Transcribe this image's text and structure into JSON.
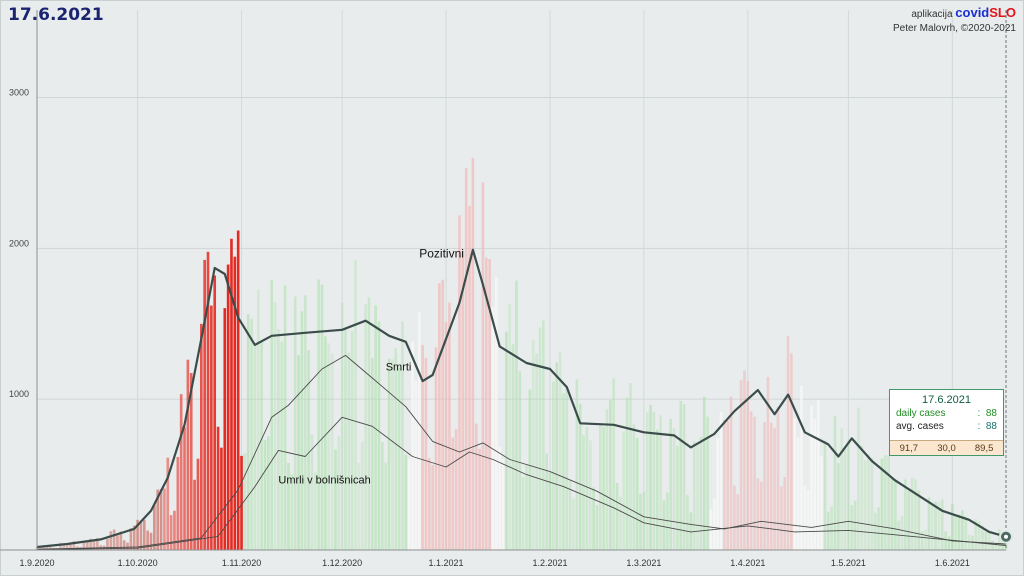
{
  "header": {
    "date": "17.6.2021"
  },
  "credit": {
    "prefix": "aplikacija",
    "brand_a": "covid",
    "brand_b": "SLO",
    "author": "Peter Malovrh, ©2020-2021"
  },
  "info_box": {
    "date": "17.6.2021",
    "daily_label": "daily cases",
    "daily_value": "88",
    "avg_label": "avg. cases",
    "avg_value": "88",
    "strip": [
      "91,7",
      "30,0",
      "89,5"
    ]
  },
  "colors": {
    "background": "#e9ecec",
    "red": "#e52a22",
    "green": "#8fd88f",
    "line_main": "#3b4d4b",
    "line_thin": "#4a4a4a"
  },
  "chart_data": {
    "type": "bar",
    "x_axis": {
      "start": "2020-09-01",
      "end": "2021-06-17",
      "tick_labels": [
        "1.9.2020",
        "1.10.2020",
        "1.11.2020",
        "1.12.2020",
        "1.1.2021",
        "1.2.2021",
        "1.3.2021",
        "1.4.2021",
        "1.5.2021",
        "1.6.2021"
      ],
      "tick_dates": [
        "2020-09-01",
        "2020-10-01",
        "2020-11-01",
        "2020-12-01",
        "2021-01-01",
        "2021-02-01",
        "2021-03-01",
        "2021-04-01",
        "2021-05-01",
        "2021-06-01"
      ]
    },
    "y_axis": {
      "min": 0,
      "max": 3580,
      "ticks": [
        1000,
        2000,
        3000
      ],
      "grid": true
    },
    "series": [
      {
        "name": "Pozitivni",
        "style": "bold-line",
        "points": [
          [
            "2020-09-01",
            20
          ],
          [
            "2020-09-10",
            40
          ],
          [
            "2020-09-20",
            70
          ],
          [
            "2020-09-30",
            140
          ],
          [
            "2020-10-05",
            260
          ],
          [
            "2020-10-10",
            480
          ],
          [
            "2020-10-15",
            830
          ],
          [
            "2020-10-20",
            1400
          ],
          [
            "2020-10-24",
            1870
          ],
          [
            "2020-10-27",
            1830
          ],
          [
            "2020-10-31",
            1540
          ],
          [
            "2020-11-05",
            1360
          ],
          [
            "2020-11-10",
            1420
          ],
          [
            "2020-11-20",
            1440
          ],
          [
            "2020-12-01",
            1460
          ],
          [
            "2020-12-08",
            1520
          ],
          [
            "2020-12-15",
            1420
          ],
          [
            "2020-12-20",
            1380
          ],
          [
            "2020-12-25",
            1120
          ],
          [
            "2020-12-28",
            1160
          ],
          [
            "2021-01-01",
            1400
          ],
          [
            "2021-01-05",
            1640
          ],
          [
            "2021-01-09",
            1990
          ],
          [
            "2021-01-12",
            1760
          ],
          [
            "2021-01-17",
            1350
          ],
          [
            "2021-01-25",
            1240
          ],
          [
            "2021-02-01",
            1200
          ],
          [
            "2021-02-06",
            1080
          ],
          [
            "2021-02-10",
            840
          ],
          [
            "2021-02-20",
            830
          ],
          [
            "2021-03-01",
            780
          ],
          [
            "2021-03-10",
            760
          ],
          [
            "2021-03-15",
            680
          ],
          [
            "2021-03-22",
            770
          ],
          [
            "2021-03-28",
            920
          ],
          [
            "2021-04-04",
            1060
          ],
          [
            "2021-04-09",
            900
          ],
          [
            "2021-04-13",
            1030
          ],
          [
            "2021-04-18",
            780
          ],
          [
            "2021-04-25",
            700
          ],
          [
            "2021-04-28",
            620
          ],
          [
            "2021-05-02",
            740
          ],
          [
            "2021-05-08",
            590
          ],
          [
            "2021-05-15",
            460
          ],
          [
            "2021-05-22",
            360
          ],
          [
            "2021-05-29",
            260
          ],
          [
            "2021-06-06",
            200
          ],
          [
            "2021-06-12",
            120
          ],
          [
            "2021-06-17",
            88
          ]
        ]
      },
      {
        "name": "Smrti",
        "style": "thin-line",
        "points": [
          [
            "2020-09-01",
            5
          ],
          [
            "2020-10-01",
            20
          ],
          [
            "2020-10-20",
            80
          ],
          [
            "2020-10-31",
            400
          ],
          [
            "2020-11-10",
            880
          ],
          [
            "2020-11-15",
            960
          ],
          [
            "2020-11-25",
            1200
          ],
          [
            "2020-12-02",
            1290
          ],
          [
            "2020-12-10",
            1140
          ],
          [
            "2020-12-20",
            950
          ],
          [
            "2020-12-28",
            720
          ],
          [
            "2021-01-05",
            650
          ],
          [
            "2021-01-12",
            710
          ],
          [
            "2021-01-20",
            600
          ],
          [
            "2021-02-01",
            520
          ],
          [
            "2021-02-15",
            390
          ],
          [
            "2021-03-01",
            220
          ],
          [
            "2021-03-15",
            170
          ],
          [
            "2021-03-25",
            140
          ],
          [
            "2021-04-05",
            190
          ],
          [
            "2021-04-20",
            150
          ],
          [
            "2021-05-01",
            190
          ],
          [
            "2021-05-15",
            140
          ],
          [
            "2021-06-01",
            60
          ],
          [
            "2021-06-17",
            40
          ]
        ]
      },
      {
        "name": "Umrli v bolnišnicah",
        "style": "thin-line",
        "points": [
          [
            "2020-09-01",
            3
          ],
          [
            "2020-10-01",
            12
          ],
          [
            "2020-10-25",
            90
          ],
          [
            "2020-11-05",
            420
          ],
          [
            "2020-11-12",
            660
          ],
          [
            "2020-11-20",
            620
          ],
          [
            "2020-12-01",
            880
          ],
          [
            "2020-12-10",
            820
          ],
          [
            "2020-12-22",
            620
          ],
          [
            "2021-01-01",
            550
          ],
          [
            "2021-01-08",
            650
          ],
          [
            "2021-01-15",
            600
          ],
          [
            "2021-01-25",
            500
          ],
          [
            "2021-02-05",
            420
          ],
          [
            "2021-02-20",
            280
          ],
          [
            "2021-03-01",
            180
          ],
          [
            "2021-03-15",
            120
          ],
          [
            "2021-04-01",
            160
          ],
          [
            "2021-04-15",
            120
          ],
          [
            "2021-05-01",
            130
          ],
          [
            "2021-05-20",
            90
          ],
          [
            "2021-06-17",
            30
          ]
        ]
      }
    ]
  }
}
